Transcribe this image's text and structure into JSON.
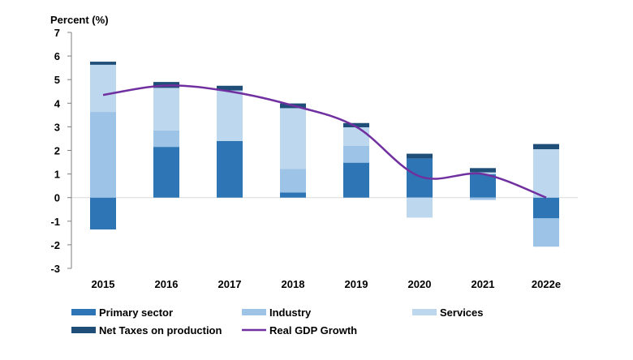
{
  "chart_data": {
    "type": "bar",
    "stacked": true,
    "title": "",
    "ylabel": "Percent (%)",
    "xlabel": "",
    "ylim": [
      -3,
      7
    ],
    "yticks": [
      -3,
      -2,
      -1,
      0,
      1,
      2,
      3,
      4,
      5,
      6,
      7
    ],
    "grid": false,
    "legend_placement": "bottom",
    "categories": [
      "2015",
      "2016",
      "2017",
      "2018",
      "2019",
      "2020",
      "2021",
      "2022e"
    ],
    "series": [
      {
        "name": "Primary sector",
        "kind": "bar",
        "color": "#2e75b6",
        "values": [
          -1.35,
          2.15,
          2.4,
          0.22,
          1.48,
          1.66,
          0.99,
          -0.88
        ]
      },
      {
        "name": "Industry",
        "kind": "bar",
        "color": "#9dc3e6",
        "values": [
          3.63,
          0.7,
          0.0,
          1.0,
          0.72,
          0.0,
          -0.1,
          -1.2
        ]
      },
      {
        "name": "Services",
        "kind": "bar",
        "color": "#bdd7ee",
        "values": [
          2.0,
          1.8,
          2.14,
          2.57,
          0.78,
          -0.85,
          0.08,
          2.05
        ]
      },
      {
        "name": "Net Taxes on production",
        "kind": "bar",
        "color": "#1f4e79",
        "values": [
          0.13,
          0.25,
          0.2,
          0.2,
          0.18,
          0.2,
          0.18,
          0.22
        ]
      },
      {
        "name": "Real GDP Growth",
        "kind": "line",
        "color": "#7030a0",
        "values": [
          4.35,
          4.75,
          4.5,
          3.9,
          3.0,
          0.9,
          1.0,
          0.0
        ]
      }
    ]
  }
}
